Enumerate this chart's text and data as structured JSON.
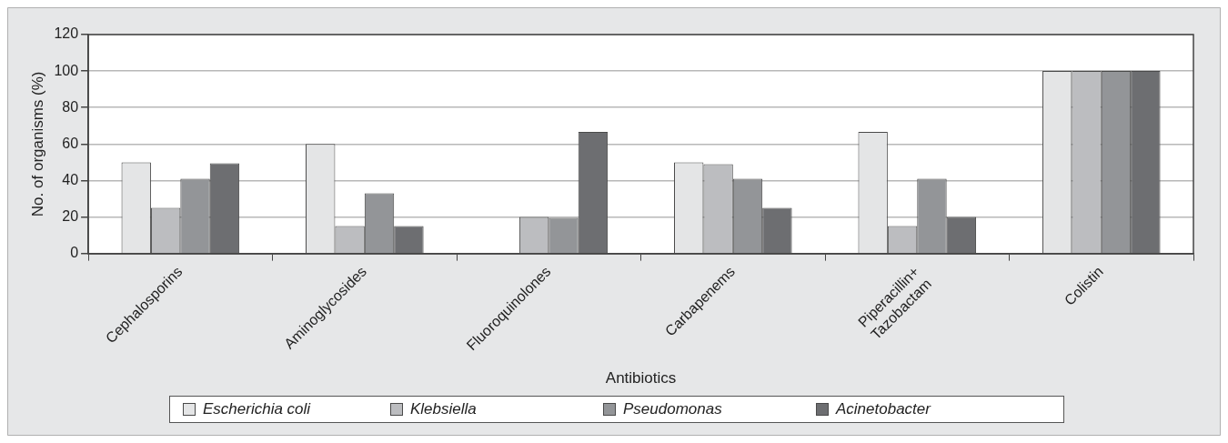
{
  "chart_data": {
    "type": "bar",
    "xlabel": "Antibiotics",
    "ylabel": "No. of organisms (%)",
    "categories": [
      "Cephalosporins",
      "Aminoglycosides",
      "Fluoroquinolones",
      "Carbapenems",
      "Piperacillin+ Tazobactam",
      "Colistin"
    ],
    "series": [
      {
        "name": "Escherichia coli",
        "color": "#e4e5e6",
        "values": [
          50,
          60,
          0,
          50,
          66.7,
          100
        ]
      },
      {
        "name": "Klebsiella",
        "color": "#bcbdc0",
        "values": [
          25,
          15,
          20,
          49,
          15,
          100
        ]
      },
      {
        "name": "Pseudomonas",
        "color": "#939598",
        "values": [
          41,
          33,
          19.5,
          41,
          41,
          100
        ]
      },
      {
        "name": "Acinetobacter",
        "color": "#6d6e71",
        "values": [
          49.5,
          15,
          66.7,
          25,
          20,
          100
        ]
      }
    ],
    "ylim": [
      0,
      120
    ],
    "yticks": [
      0,
      20,
      40,
      60,
      80,
      100,
      120
    ],
    "grid": "y",
    "legend": "bottom"
  }
}
